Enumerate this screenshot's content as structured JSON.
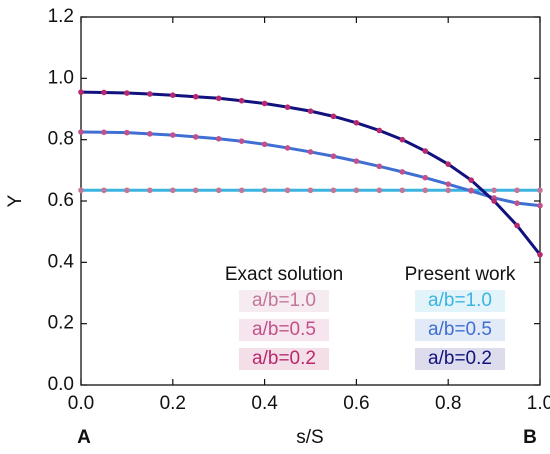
{
  "chart_data": {
    "type": "line",
    "xlabel": "s/S",
    "ylabel": "Y",
    "corner_labels": [
      "A",
      "B"
    ],
    "x": [
      0,
      0.05,
      0.1,
      0.15,
      0.2,
      0.25,
      0.3,
      0.35,
      0.4,
      0.45,
      0.5,
      0.55,
      0.6,
      0.65,
      0.7,
      0.75,
      0.8,
      0.85,
      0.9,
      0.95,
      1.0
    ],
    "series": [
      {
        "name": "a/b=1.0",
        "group": "Exact solution",
        "style": "dots",
        "color": "#c2769a",
        "values": [
          0.635,
          0.635,
          0.635,
          0.635,
          0.635,
          0.635,
          0.635,
          0.635,
          0.635,
          0.635,
          0.635,
          0.635,
          0.635,
          0.635,
          0.635,
          0.635,
          0.635,
          0.635,
          0.635,
          0.635,
          0.635
        ]
      },
      {
        "name": "a/b=0.5",
        "group": "Exact solution",
        "style": "dots",
        "color": "#c2508a",
        "values": [
          0.825,
          0.824,
          0.823,
          0.819,
          0.815,
          0.809,
          0.803,
          0.795,
          0.785,
          0.773,
          0.76,
          0.746,
          0.73,
          0.713,
          0.695,
          0.676,
          0.655,
          0.633,
          0.61,
          0.593,
          0.585
        ]
      },
      {
        "name": "a/b=0.2",
        "group": "Exact solution",
        "style": "dots",
        "color": "#b8286e",
        "values": [
          0.955,
          0.954,
          0.952,
          0.949,
          0.945,
          0.94,
          0.935,
          0.927,
          0.918,
          0.906,
          0.893,
          0.876,
          0.855,
          0.83,
          0.8,
          0.763,
          0.72,
          0.668,
          0.6,
          0.52,
          0.425
        ]
      },
      {
        "name": "a/b=1.0",
        "group": "Present work",
        "style": "line",
        "color": "#3cb4e0",
        "values": [
          0.635,
          0.635,
          0.635,
          0.635,
          0.635,
          0.635,
          0.635,
          0.635,
          0.635,
          0.635,
          0.635,
          0.635,
          0.635,
          0.635,
          0.635,
          0.635,
          0.635,
          0.635,
          0.635,
          0.635,
          0.635
        ]
      },
      {
        "name": "a/b=0.5",
        "group": "Present work",
        "style": "line",
        "color": "#3f6fd2",
        "values": [
          0.825,
          0.824,
          0.823,
          0.819,
          0.815,
          0.809,
          0.803,
          0.795,
          0.785,
          0.773,
          0.76,
          0.746,
          0.73,
          0.713,
          0.695,
          0.676,
          0.655,
          0.633,
          0.61,
          0.593,
          0.585
        ]
      },
      {
        "name": "a/b=0.2",
        "group": "Present work",
        "style": "line",
        "color": "#12127e",
        "values": [
          0.955,
          0.954,
          0.952,
          0.949,
          0.945,
          0.94,
          0.935,
          0.927,
          0.918,
          0.906,
          0.893,
          0.876,
          0.855,
          0.83,
          0.8,
          0.763,
          0.72,
          0.668,
          0.6,
          0.52,
          0.425
        ]
      }
    ],
    "xlim": [
      0,
      1.0
    ],
    "xticks": [
      {
        "value": 0,
        "label": "0.0"
      },
      0.2,
      0.4,
      0.6,
      0.8,
      {
        "value": 1,
        "label": "1.0"
      }
    ],
    "ylim": [
      0,
      1.2
    ],
    "yticks": [
      {
        "value": 0,
        "label": "0.0"
      },
      0.2,
      0.4,
      0.6,
      0.8,
      {
        "value": 1,
        "label": "1.0"
      },
      1.2
    ],
    "grid": false
  }
}
